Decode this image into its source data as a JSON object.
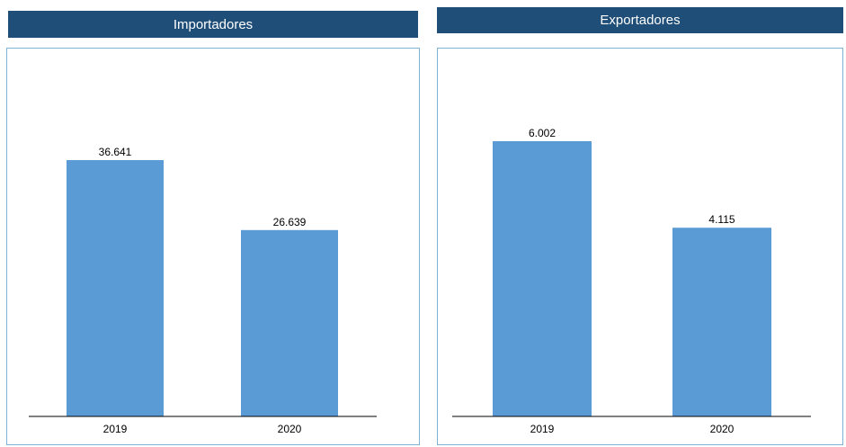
{
  "chart_data": [
    {
      "type": "bar",
      "title": "Importadores",
      "categories": [
        "2019",
        "2020"
      ],
      "values": [
        36641,
        26639
      ],
      "data_labels": [
        "36.641",
        "26.639"
      ],
      "color": "#5b9bd5",
      "header_color": "#1f4e79",
      "grid": false,
      "legend": "none"
    },
    {
      "type": "bar",
      "title": "Exportadores",
      "categories": [
        "2019",
        "2020"
      ],
      "values": [
        6002,
        4115
      ],
      "data_labels": [
        "6.002",
        "4.115"
      ],
      "color": "#5b9bd5",
      "header_color": "#1f4e79",
      "grid": false,
      "legend": "none"
    }
  ]
}
